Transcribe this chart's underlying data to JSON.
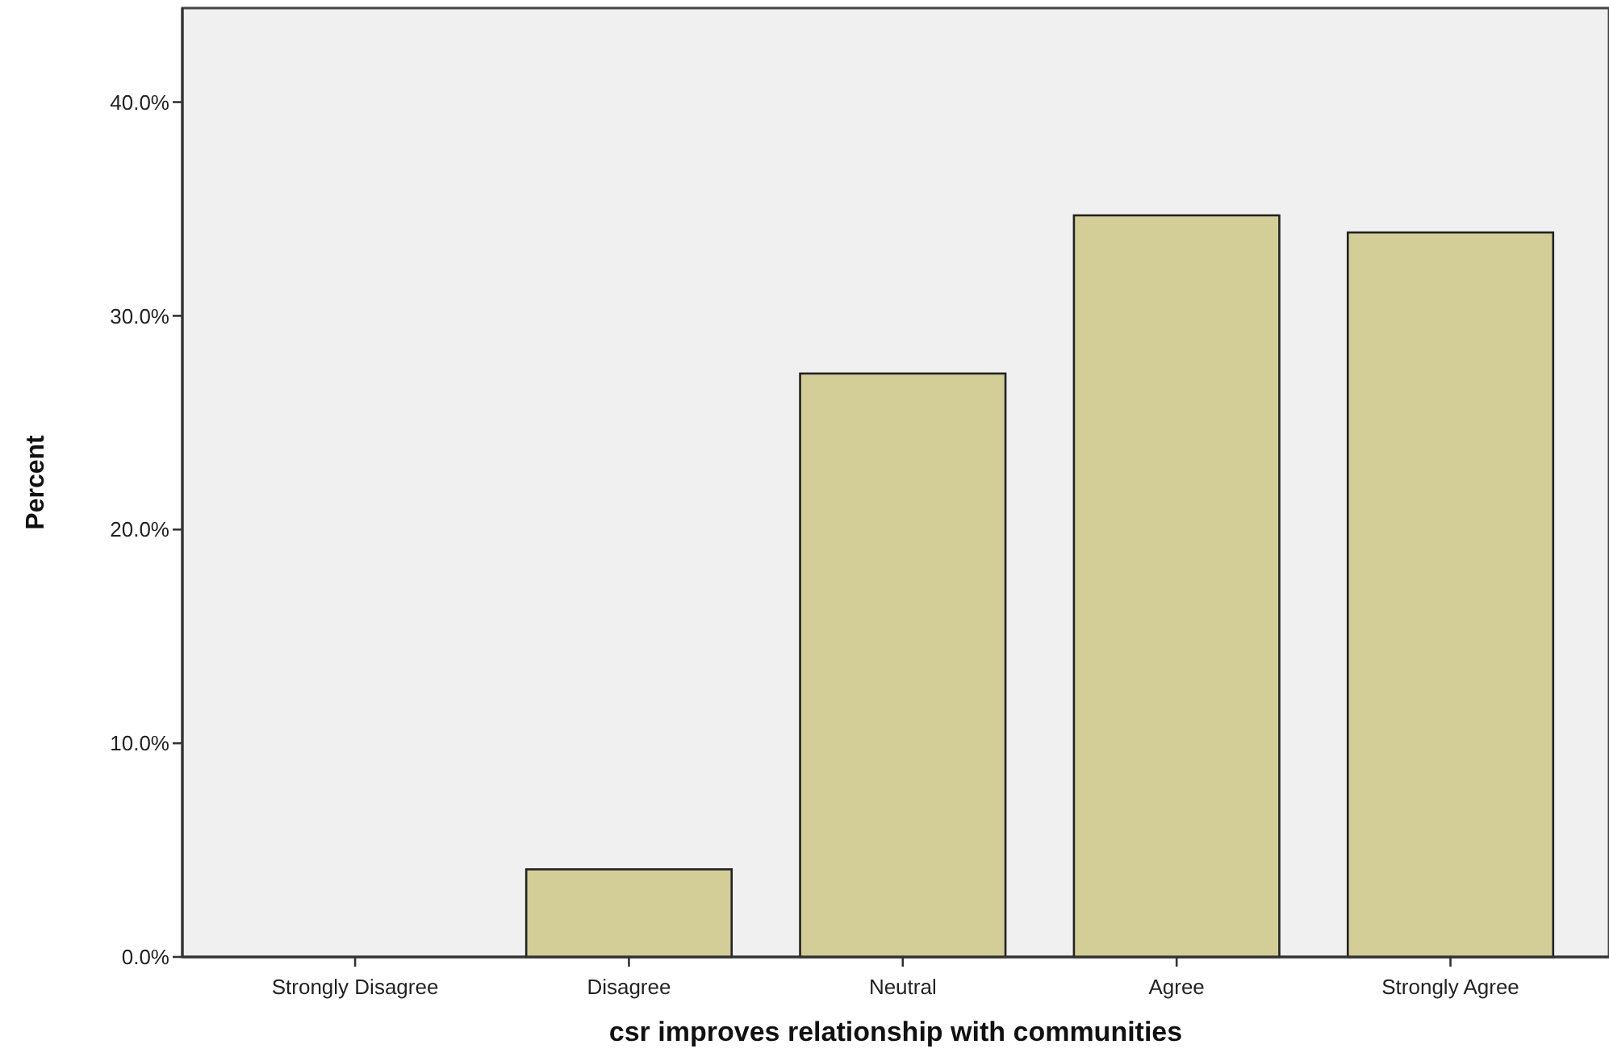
{
  "chart_data": {
    "type": "bar",
    "xlabel": "csr improves relationship with communities",
    "ylabel": "Percent",
    "categories": [
      "Strongly Disagree",
      "Disagree",
      "Neutral",
      "Agree",
      "Strongly Agree"
    ],
    "values": [
      0,
      4.1,
      27.3,
      34.7,
      33.9
    ],
    "color": "#d3ce97",
    "ylim": [
      0,
      44.4
    ],
    "yticks": [
      {
        "value": 0,
        "label": "0.0%"
      },
      {
        "value": 10,
        "label": "10.0%"
      },
      {
        "value": 20,
        "label": "20.0%"
      },
      {
        "value": 30,
        "label": "30.0%"
      },
      {
        "value": 40,
        "label": "40.0%"
      }
    ],
    "grid": false
  }
}
